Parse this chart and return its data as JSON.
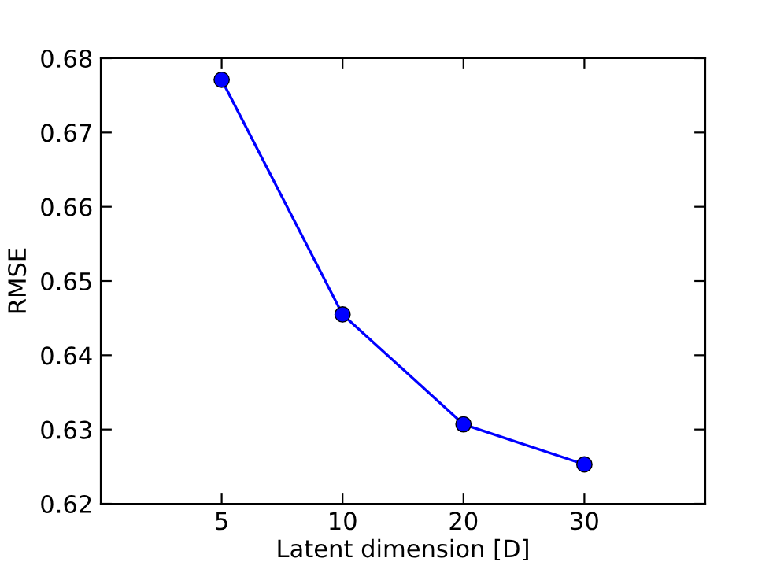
{
  "chart_data": {
    "type": "line",
    "xlabel": "Latent dimension [D]",
    "ylabel": "RMSE",
    "categories": [
      "5",
      "10",
      "20",
      "30"
    ],
    "series": [
      {
        "color": "#0000ff",
        "values": [
          0.6771,
          0.6455,
          0.6307,
          0.6253
        ]
      }
    ],
    "ylim": [
      0.62,
      0.68
    ],
    "yticks": [
      0.62,
      0.63,
      0.64,
      0.65,
      0.66,
      0.67,
      0.68
    ],
    "marker": "circle",
    "line_style": "solid",
    "grid": false,
    "legend": false
  }
}
